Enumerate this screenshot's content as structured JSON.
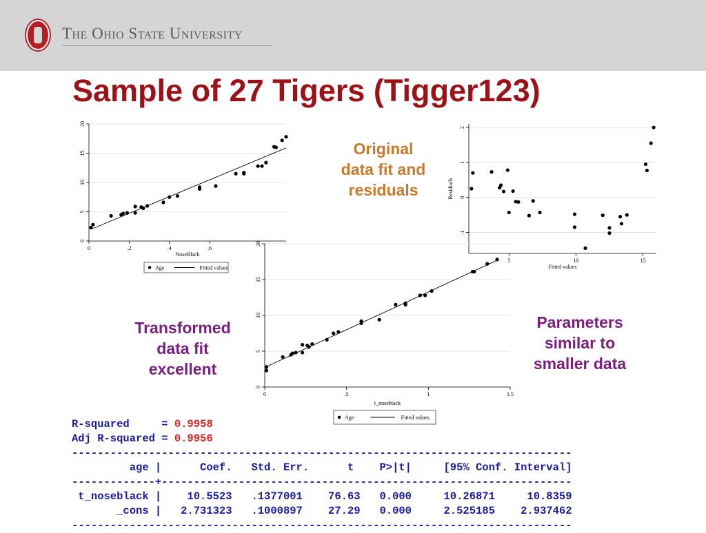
{
  "header": {
    "university": "The Ohio State University",
    "logo_letter": "O",
    "bg_color": "#d5d5d5",
    "accent": "#b41f24"
  },
  "slide": {
    "title": "Sample of 27 Tigers (Tigger123)"
  },
  "captions": {
    "original": "Original data fit and residuals",
    "transformed": "Transformed data fit excellent",
    "parameters": "Parameters similar to smaller data"
  },
  "stats": {
    "r2_label": "R-squared     = ",
    "r2_value": "0.9958",
    "adjr2_label": "Adj R-squared = ",
    "adjr2_value": "0.9956",
    "rule": "------------------------------------------------------------------------------",
    "header_row": "         age |      Coef.   Std. Err.      t    P>|t|     [95% Conf. Interval]",
    "rule2": "-------------+----------------------------------------------------------------",
    "row1": " t_noseblack |    10.5523   .1377001    76.63   0.000     10.26871     10.8359",
    "row2": "       _cons |   2.731323   .1000897    27.29   0.000     2.525185    2.937462",
    "rule3": "------------------------------------------------------------------------------"
  },
  "chart_data": [
    {
      "type": "scatter",
      "xlabel": "NoseBlack",
      "ylabel": "",
      "xticks": [
        "0",
        ".2",
        ".4",
        ".6"
      ],
      "yticks": [
        "0",
        "5",
        "10",
        "15",
        "20"
      ],
      "xlim": [
        0,
        0.98
      ],
      "ylim": [
        0,
        20
      ],
      "legend": [
        "Age",
        "Fitted values"
      ],
      "legend_position": "bottom",
      "points": [
        [
          0.01,
          2.3
        ],
        [
          0.02,
          2.8
        ],
        [
          0.11,
          4.3
        ],
        [
          0.16,
          4.5
        ],
        [
          0.17,
          4.7
        ],
        [
          0.19,
          4.8
        ],
        [
          0.23,
          5.9
        ],
        [
          0.23,
          4.8
        ],
        [
          0.26,
          5.8
        ],
        [
          0.27,
          5.6
        ],
        [
          0.29,
          6.0
        ],
        [
          0.37,
          6.6
        ],
        [
          0.4,
          7.5
        ],
        [
          0.44,
          7.7
        ],
        [
          0.55,
          8.9
        ],
        [
          0.55,
          9.2
        ],
        [
          0.63,
          9.4
        ],
        [
          0.73,
          11.5
        ],
        [
          0.77,
          11.5
        ],
        [
          0.77,
          11.7
        ],
        [
          0.84,
          12.8
        ],
        [
          0.86,
          12.8
        ],
        [
          0.88,
          13.4
        ],
        [
          0.92,
          16.1
        ],
        [
          0.93,
          16.0
        ],
        [
          0.96,
          17.2
        ],
        [
          0.98,
          17.8
        ]
      ],
      "fit": [
        [
          0.01,
          2.0
        ],
        [
          0.98,
          15.9
        ]
      ]
    },
    {
      "type": "scatter",
      "xlabel": "Fitted values",
      "ylabel": "Residuals",
      "xticks": [
        "5",
        "10",
        "15"
      ],
      "yticks": [
        "-1",
        "0",
        "1",
        "2"
      ],
      "xlim": [
        2,
        16
      ],
      "ylim": [
        -1.6,
        2.1
      ],
      "points": [
        [
          2.2,
          0.25
        ],
        [
          2.3,
          0.7
        ],
        [
          3.7,
          0.73
        ],
        [
          4.3,
          0.28
        ],
        [
          4.4,
          0.35
        ],
        [
          4.6,
          0.17
        ],
        [
          4.9,
          0.78
        ],
        [
          5.0,
          -0.43
        ],
        [
          5.3,
          0.18
        ],
        [
          5.5,
          -0.12
        ],
        [
          5.7,
          -0.13
        ],
        [
          6.5,
          -0.52
        ],
        [
          6.8,
          -0.1
        ],
        [
          7.3,
          -0.43
        ],
        [
          9.9,
          -0.48
        ],
        [
          9.9,
          -0.85
        ],
        [
          10.7,
          -1.45
        ],
        [
          12.0,
          -0.51
        ],
        [
          12.5,
          -0.87
        ],
        [
          12.5,
          -1.02
        ],
        [
          13.3,
          -0.55
        ],
        [
          13.4,
          -0.75
        ],
        [
          13.8,
          -0.5
        ],
        [
          15.2,
          0.95
        ],
        [
          15.3,
          0.77
        ],
        [
          15.6,
          1.55
        ],
        [
          15.8,
          2.0
        ]
      ]
    },
    {
      "type": "scatter",
      "xlabel": "t_noseblack",
      "ylabel": "",
      "xticks": [
        "0",
        ".5",
        "1",
        "1.5"
      ],
      "yticks": [
        "0",
        "5",
        "10",
        "15",
        "20"
      ],
      "xlim": [
        0,
        1.5
      ],
      "ylim": [
        0,
        20
      ],
      "legend": [
        "Age",
        "Fitted values"
      ],
      "legend_position": "bottom",
      "points": [
        [
          0.01,
          2.3
        ],
        [
          0.01,
          2.8
        ],
        [
          0.11,
          4.2
        ],
        [
          0.16,
          4.5
        ],
        [
          0.17,
          4.7
        ],
        [
          0.19,
          4.8
        ],
        [
          0.23,
          5.9
        ],
        [
          0.23,
          4.8
        ],
        [
          0.26,
          5.8
        ],
        [
          0.27,
          5.6
        ],
        [
          0.29,
          6.0
        ],
        [
          0.38,
          6.6
        ],
        [
          0.42,
          7.5
        ],
        [
          0.45,
          7.7
        ],
        [
          0.59,
          8.9
        ],
        [
          0.59,
          9.2
        ],
        [
          0.7,
          9.4
        ],
        [
          0.8,
          11.5
        ],
        [
          0.86,
          11.5
        ],
        [
          0.86,
          11.7
        ],
        [
          0.95,
          12.8
        ],
        [
          0.98,
          12.8
        ],
        [
          1.02,
          13.4
        ],
        [
          1.27,
          16.1
        ],
        [
          1.28,
          16.1
        ],
        [
          1.36,
          17.2
        ],
        [
          1.42,
          17.8
        ]
      ],
      "fit": [
        [
          0.0,
          2.73
        ],
        [
          1.42,
          17.7
        ]
      ]
    }
  ]
}
